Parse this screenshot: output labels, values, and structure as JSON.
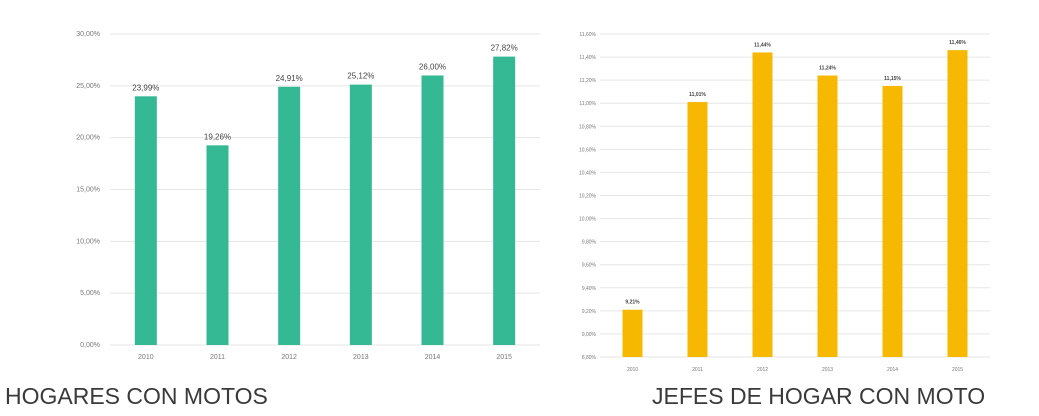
{
  "captions": {
    "left": "HOGARES CON MOTOS",
    "right": "JEFES DE HOGAR CON MOTO"
  },
  "chart_data": [
    {
      "type": "bar",
      "title": "HOGARES CON MOTOS",
      "categories": [
        "2010",
        "2011",
        "2012",
        "2013",
        "2014",
        "2015"
      ],
      "values": [
        23.99,
        19.26,
        24.91,
        25.12,
        26.0,
        27.82
      ],
      "data_labels": [
        "23,99%",
        "19,26%",
        "24,91%",
        "25,12%",
        "26,00%",
        "27,82%"
      ],
      "yticks": [
        "0,00%",
        "5,00%",
        "10,00%",
        "15,00%",
        "20,00%",
        "25,00%",
        "30,00%"
      ],
      "ylim": [
        0,
        30
      ],
      "grid": true,
      "color": "#35b994"
    },
    {
      "type": "bar",
      "title": "JEFES DE HOGAR CON MOTO",
      "categories": [
        "2010",
        "2011",
        "2012",
        "2013",
        "2014",
        "2015"
      ],
      "values": [
        9.21,
        11.01,
        11.44,
        11.24,
        11.15,
        11.46
      ],
      "data_labels": [
        "9,21%",
        "11,01%",
        "11,44%",
        "11,24%",
        "11,15%",
        "11,46%"
      ],
      "yticks": [
        "8,80%",
        "9,00%",
        "9,20%",
        "9,40%",
        "9,60%",
        "9,80%",
        "10,00%",
        "10,20%",
        "10,40%",
        "10,60%",
        "10,80%",
        "11,00%",
        "11,20%",
        "11,40%",
        "11,60%"
      ],
      "ylim": [
        8.8,
        11.6
      ],
      "grid": true,
      "color": "#f6b800"
    }
  ]
}
